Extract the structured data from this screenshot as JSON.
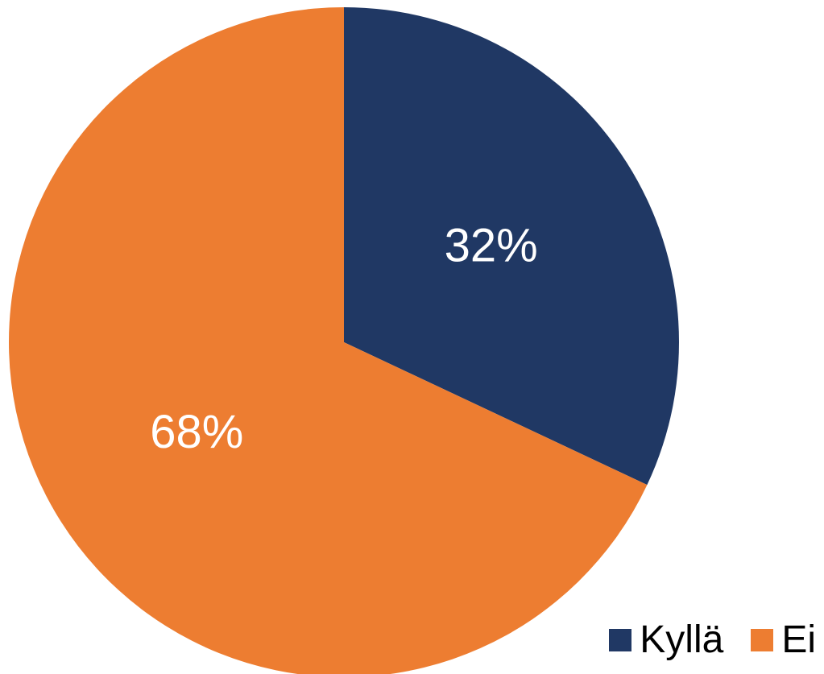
{
  "chart_data": {
    "type": "pie",
    "title": "",
    "slices": [
      {
        "label": "Kyllä",
        "value": 32,
        "display": "32%",
        "color": "#203864"
      },
      {
        "label": "Ei",
        "value": 68,
        "display": "68%",
        "color": "#ed7d31"
      }
    ],
    "legend_position": "bottom-right",
    "start_angle": "12 o'clock",
    "direction": "clockwise"
  },
  "legend": {
    "items": [
      {
        "label": "Kyllä",
        "color": "#203864"
      },
      {
        "label": "Ei",
        "color": "#ed7d31"
      }
    ]
  }
}
